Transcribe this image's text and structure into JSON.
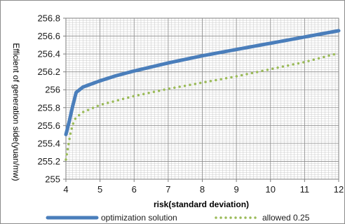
{
  "chart_data": {
    "type": "line",
    "title": "",
    "xlabel": "risk(standard deviation)",
    "ylabel": "Efficient of generation side(yuan/mw)",
    "xlim": [
      4,
      12
    ],
    "ylim": [
      255,
      256.8
    ],
    "x_ticks": [
      "4",
      "5",
      "6",
      "7",
      "8",
      "9",
      "10",
      "11",
      "12"
    ],
    "y_ticks": [
      "255",
      "255.2",
      "255.4",
      "255.6",
      "255.8",
      "256",
      "256.2",
      "256.4",
      "256.6",
      "256.8"
    ],
    "grid": true,
    "legend_position": "bottom",
    "series": [
      {
        "name": "optimization solution",
        "color": "#4a7ebb",
        "style": "solid",
        "x": [
          4,
          4.1,
          4.2,
          4.3,
          4.5,
          5,
          5.5,
          6,
          7,
          8,
          9,
          10,
          11,
          12
        ],
        "y": [
          255.5,
          255.65,
          255.82,
          255.97,
          256.03,
          256.1,
          256.16,
          256.21,
          256.3,
          256.38,
          256.45,
          256.52,
          256.59,
          256.66
        ]
      },
      {
        "name": "allowed 0.25",
        "color": "#9bbb59",
        "style": "dotted",
        "x": [
          4,
          4.05,
          4.1,
          4.15,
          4.2,
          4.25,
          4.3,
          4.4,
          4.5,
          5,
          5.5,
          6,
          7,
          8,
          9,
          10,
          11,
          12
        ],
        "y": [
          255.22,
          255.33,
          255.44,
          255.54,
          255.61,
          255.66,
          255.69,
          255.72,
          255.75,
          255.83,
          255.88,
          255.93,
          256.01,
          256.08,
          256.15,
          256.23,
          256.31,
          256.41
        ]
      }
    ]
  }
}
